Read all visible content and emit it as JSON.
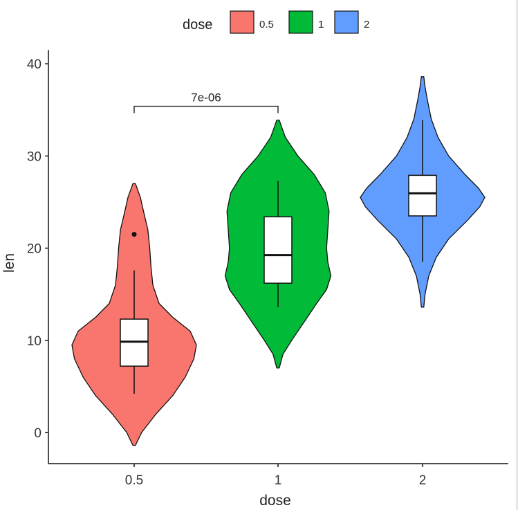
{
  "chart_data": {
    "type": "violin",
    "xlabel": "dose",
    "ylabel": "len",
    "ylim": [
      -2.5,
      41.5
    ],
    "yticks": [
      0,
      10,
      20,
      30,
      40
    ],
    "categories": [
      "0.5",
      "1",
      "2"
    ],
    "legend": {
      "title": "dose",
      "placement": "top",
      "entries": [
        "0.5",
        "1",
        "2"
      ]
    },
    "colors": {
      "0.5": "#F8766D",
      "1": "#00BA38",
      "2": "#619CFF"
    },
    "annotation": {
      "label": "7e-06",
      "from": "0.5",
      "to": "1",
      "y": 35.4
    },
    "series": [
      {
        "name": "0.5",
        "violin": [
          [
            -1.4,
            0.02
          ],
          [
            0,
            0.12
          ],
          [
            2,
            0.35
          ],
          [
            4,
            0.62
          ],
          [
            6,
            0.82
          ],
          [
            8,
            0.96
          ],
          [
            9.5,
            1.0
          ],
          [
            11,
            0.9
          ],
          [
            12.5,
            0.62
          ],
          [
            14,
            0.4
          ],
          [
            16,
            0.3
          ],
          [
            18,
            0.27
          ],
          [
            20,
            0.25
          ],
          [
            22,
            0.22
          ],
          [
            24,
            0.15
          ],
          [
            25.5,
            0.1
          ],
          [
            27,
            0.02
          ]
        ],
        "box": {
          "q1": 7.2,
          "median": 9.85,
          "q3": 12.3,
          "whisker_low": 4.2,
          "whisker_high": 17.6
        },
        "outliers": [
          21.5
        ]
      },
      {
        "name": "1",
        "violin": [
          [
            7,
            0.02
          ],
          [
            8.5,
            0.08
          ],
          [
            10,
            0.22
          ],
          [
            12,
            0.42
          ],
          [
            14,
            0.62
          ],
          [
            15.5,
            0.78
          ],
          [
            17,
            0.85
          ],
          [
            18.5,
            0.8
          ],
          [
            20,
            0.78
          ],
          [
            22,
            0.8
          ],
          [
            24,
            0.82
          ],
          [
            26,
            0.76
          ],
          [
            28,
            0.58
          ],
          [
            30,
            0.32
          ],
          [
            32,
            0.12
          ],
          [
            33.5,
            0.04
          ],
          [
            33.9,
            0.02
          ]
        ],
        "box": {
          "q1": 16.2,
          "median": 19.25,
          "q3": 23.4,
          "whisker_low": 13.6,
          "whisker_high": 27.3
        },
        "outliers": []
      },
      {
        "name": "2",
        "violin": [
          [
            13.6,
            0.02
          ],
          [
            15,
            0.04
          ],
          [
            17,
            0.1
          ],
          [
            19,
            0.22
          ],
          [
            21,
            0.42
          ],
          [
            23,
            0.72
          ],
          [
            24.5,
            0.92
          ],
          [
            25.5,
            1.0
          ],
          [
            26.5,
            0.9
          ],
          [
            28,
            0.68
          ],
          [
            30,
            0.42
          ],
          [
            32,
            0.25
          ],
          [
            34,
            0.14
          ],
          [
            36,
            0.08
          ],
          [
            37.5,
            0.04
          ],
          [
            38.6,
            0.02
          ]
        ],
        "box": {
          "q1": 23.5,
          "median": 25.95,
          "q3": 27.9,
          "whisker_low": 18.5,
          "whisker_high": 33.9
        },
        "outliers": []
      }
    ]
  }
}
